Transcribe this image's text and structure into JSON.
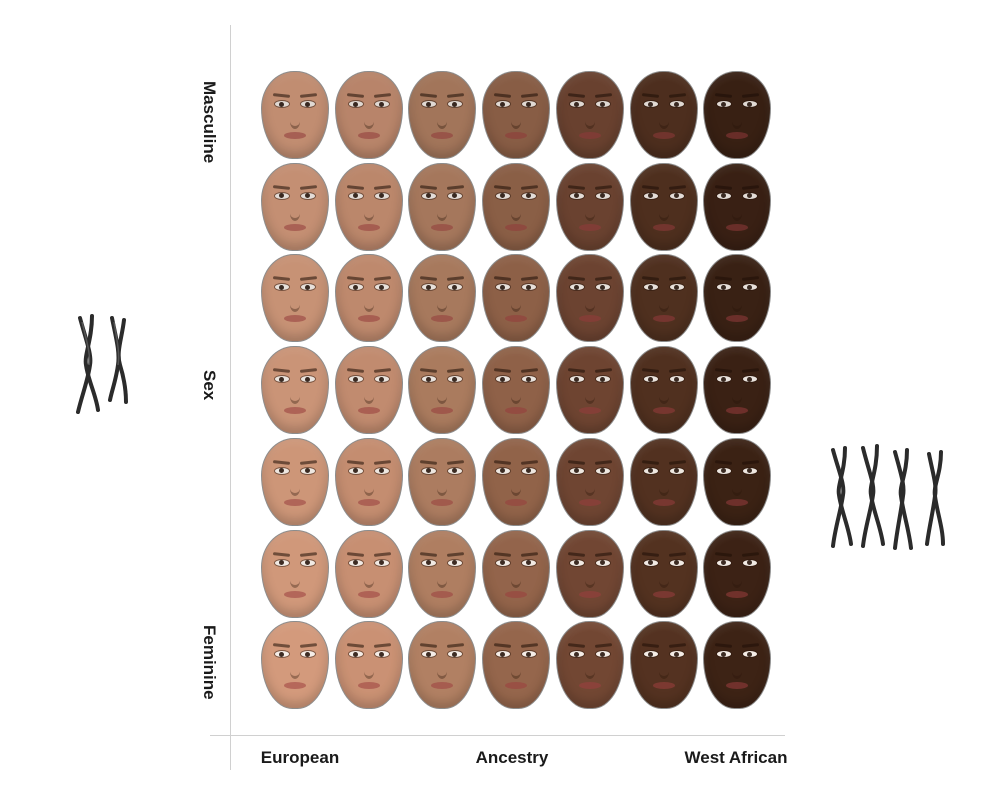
{
  "axes": {
    "vertical": {
      "top_label": "Masculine",
      "middle_label": "Sex",
      "bottom_label": "Feminine"
    },
    "horizontal": {
      "left_label": "European",
      "middle_label": "Ancestry",
      "right_label": "West African"
    }
  },
  "grid": {
    "rows": 7,
    "columns": 7,
    "row_order": "masculine-to-feminine",
    "column_order": "european-to-west-african",
    "skin_tones": [
      "#c99376",
      "#c08a6e",
      "#a97a5e",
      "#8e6148",
      "#6d4431",
      "#50301f",
      "#3a2114"
    ]
  },
  "icons": {
    "left": "xy-chromosomes-icon",
    "right": "xx-chromosomes-icon"
  }
}
